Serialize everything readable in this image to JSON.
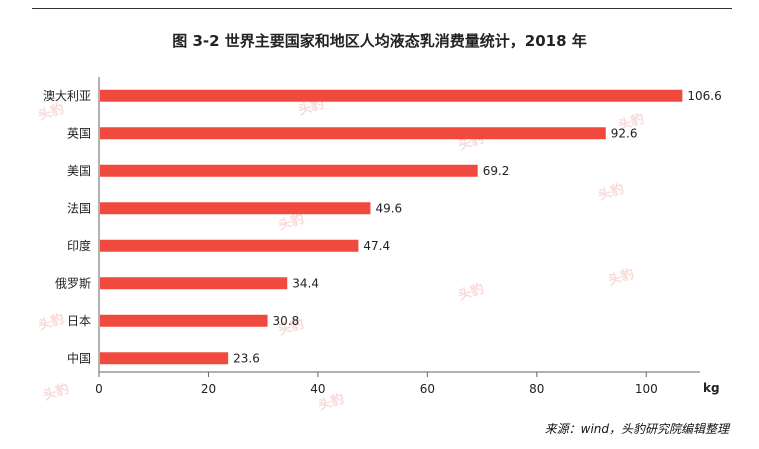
{
  "chart_data": {
    "type": "bar",
    "orientation": "horizontal",
    "title": "图  3-2 世界主要国家和地区人均液态乳消费量统计，2018 年",
    "categories": [
      "澳大利亚",
      "英国",
      "美国",
      "法国",
      "印度",
      "俄罗斯",
      "日本",
      "中国"
    ],
    "values": [
      106.6,
      92.6,
      69.2,
      49.6,
      47.4,
      34.4,
      30.8,
      23.6
    ],
    "data_labels": [
      "106.6",
      "92.6",
      "69.2",
      "49.6",
      "47.4",
      "34.4",
      "30.8",
      "23.6"
    ],
    "xlabel": "kg",
    "ylabel": "",
    "xlim": [
      0,
      110
    ],
    "xticks": [
      0,
      20,
      40,
      60,
      80,
      100
    ],
    "xtick_labels": [
      "0",
      "20",
      "40",
      "60",
      "80",
      "100"
    ],
    "grid": false,
    "bar_color": "#f04a3e",
    "source": "来源：wind，头豹研究院编辑整理"
  },
  "watermark_text": "头豹"
}
